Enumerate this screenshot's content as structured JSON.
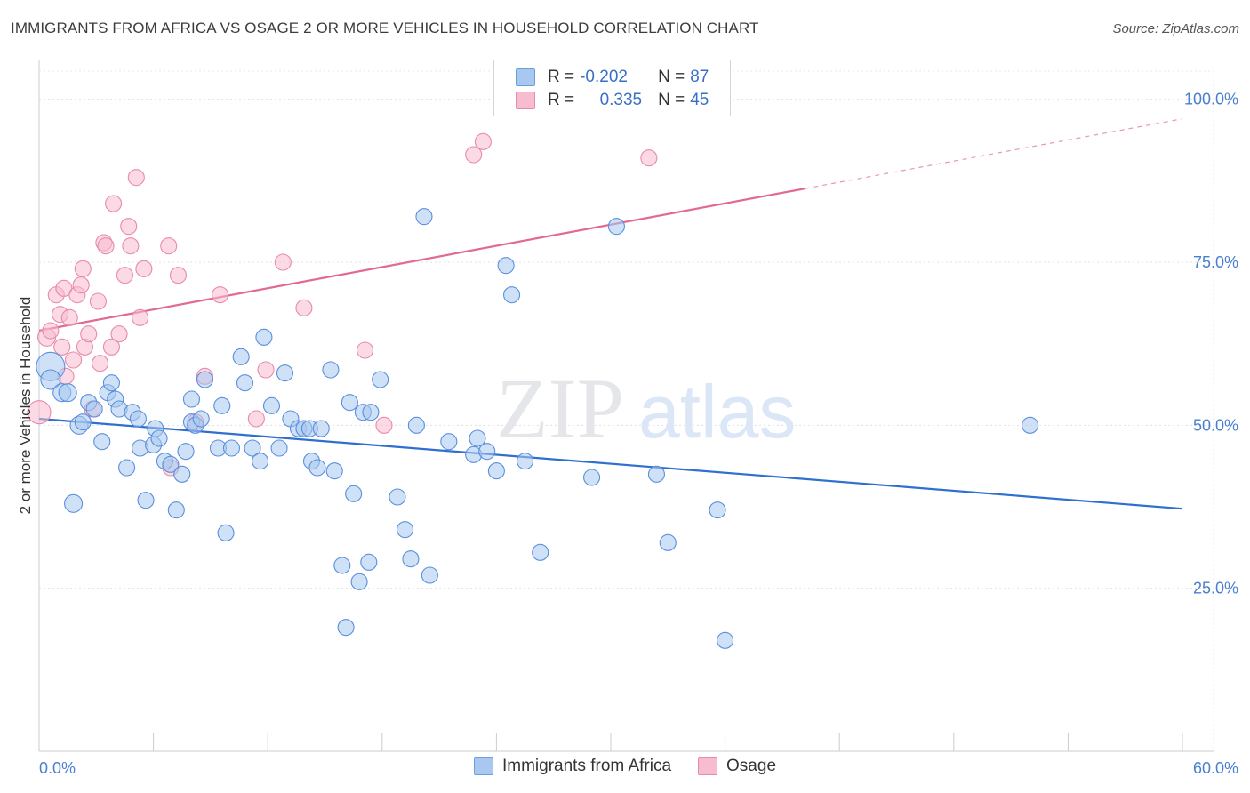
{
  "title": "IMMIGRANTS FROM AFRICA VS OSAGE 2 OR MORE VEHICLES IN HOUSEHOLD CORRELATION CHART",
  "source": "Source: ZipAtlas.com",
  "watermark": {
    "zip": "ZIP",
    "atlas": "atlas"
  },
  "legend": {
    "rows": [
      {
        "r_label": "R =",
        "r_value": "-0.202",
        "n_label": "N =",
        "n_value": "87",
        "color": "#a8c8f0",
        "stroke": "#6a9ee0"
      },
      {
        "r_label": "R =",
        "r_value": "0.335",
        "n_label": "N =",
        "n_value": "45",
        "color": "#f7bcd0",
        "stroke": "#e88aaa"
      }
    ]
  },
  "bottom_legend": [
    {
      "label": "Immigrants from Africa",
      "color": "#a8c8f0",
      "stroke": "#6a9ee0"
    },
    {
      "label": "Osage",
      "color": "#f7bcd0",
      "stroke": "#e88aaa"
    }
  ],
  "chart_data": {
    "type": "scatter",
    "xlabel": "",
    "ylabel": "2 or more Vehicles in Household",
    "xlim": [
      0,
      60
    ],
    "ylim": [
      0,
      105
    ],
    "x_tick_labels": [
      {
        "value": 0,
        "label": "0.0%"
      },
      {
        "value": 60,
        "label": "60.0%"
      }
    ],
    "y_tick_labels": [
      {
        "value": 25,
        "label": "25.0%"
      },
      {
        "value": 50,
        "label": "50.0%"
      },
      {
        "value": 75,
        "label": "75.0%"
      },
      {
        "value": 100,
        "label": "100.0%"
      }
    ],
    "grid": true,
    "series": [
      {
        "name": "Immigrants from Africa",
        "color": "#a8c8f0",
        "stroke": "#5b8fdc",
        "trend": {
          "x": [
            0,
            60
          ],
          "y": [
            51.0,
            37.2
          ],
          "color": "#2e6fd0"
        },
        "points": [
          [
            0.6,
            59.0,
            15
          ],
          [
            0.6,
            57.0,
            10
          ],
          [
            1.2,
            55.0,
            9
          ],
          [
            1.5,
            55.0,
            9
          ],
          [
            2.1,
            50.0,
            9
          ],
          [
            2.3,
            50.5,
            8
          ],
          [
            1.8,
            38.0,
            9
          ],
          [
            2.6,
            53.5,
            8
          ],
          [
            2.9,
            52.5,
            8
          ],
          [
            3.3,
            47.5,
            8
          ],
          [
            3.6,
            55.0,
            8
          ],
          [
            3.8,
            56.5,
            8
          ],
          [
            4.0,
            54.0,
            8
          ],
          [
            4.2,
            52.5,
            8
          ],
          [
            4.6,
            43.5,
            8
          ],
          [
            4.9,
            52.0,
            8
          ],
          [
            5.2,
            51.0,
            8
          ],
          [
            5.3,
            46.5,
            8
          ],
          [
            5.6,
            38.5,
            8
          ],
          [
            6.0,
            47.0,
            8
          ],
          [
            6.1,
            49.5,
            8
          ],
          [
            6.3,
            48.0,
            8
          ],
          [
            6.6,
            44.5,
            8
          ],
          [
            6.9,
            44.0,
            8
          ],
          [
            7.2,
            37.0,
            8
          ],
          [
            7.5,
            42.5,
            8
          ],
          [
            7.7,
            46.0,
            8
          ],
          [
            8.0,
            54.0,
            8
          ],
          [
            8.0,
            50.5,
            8
          ],
          [
            8.2,
            50.0,
            8
          ],
          [
            8.5,
            51.0,
            8
          ],
          [
            8.7,
            57.0,
            8
          ],
          [
            9.4,
            46.5,
            8
          ],
          [
            9.6,
            53.0,
            8
          ],
          [
            9.8,
            33.5,
            8
          ],
          [
            10.1,
            46.5,
            8
          ],
          [
            10.6,
            60.5,
            8
          ],
          [
            10.8,
            56.5,
            8
          ],
          [
            11.2,
            46.5,
            8
          ],
          [
            11.6,
            44.5,
            8
          ],
          [
            11.8,
            63.5,
            8
          ],
          [
            12.2,
            53.0,
            8
          ],
          [
            12.6,
            46.5,
            8
          ],
          [
            12.9,
            58.0,
            8
          ],
          [
            13.2,
            51.0,
            8
          ],
          [
            13.6,
            49.5,
            8
          ],
          [
            13.9,
            49.5,
            8
          ],
          [
            14.2,
            49.5,
            8
          ],
          [
            14.3,
            44.5,
            8
          ],
          [
            14.6,
            43.5,
            8
          ],
          [
            14.8,
            49.5,
            8
          ],
          [
            15.3,
            58.5,
            8
          ],
          [
            15.5,
            43.0,
            8
          ],
          [
            15.9,
            28.5,
            8
          ],
          [
            16.1,
            19.0,
            8
          ],
          [
            16.3,
            53.5,
            8
          ],
          [
            16.5,
            39.5,
            8
          ],
          [
            16.8,
            26.0,
            8
          ],
          [
            17.0,
            52.0,
            8
          ],
          [
            17.3,
            29.0,
            8
          ],
          [
            17.4,
            52.0,
            8
          ],
          [
            17.9,
            57.0,
            8
          ],
          [
            18.8,
            39.0,
            8
          ],
          [
            19.2,
            34.0,
            8
          ],
          [
            19.5,
            29.5,
            8
          ],
          [
            19.8,
            50.0,
            8
          ],
          [
            20.2,
            82.0,
            8
          ],
          [
            20.5,
            27.0,
            8
          ],
          [
            21.5,
            47.5,
            8
          ],
          [
            22.8,
            45.5,
            8
          ],
          [
            23.0,
            48.0,
            8
          ],
          [
            23.5,
            46.0,
            8
          ],
          [
            24.0,
            43.0,
            8
          ],
          [
            24.5,
            74.5,
            8
          ],
          [
            24.8,
            70.0,
            8
          ],
          [
            25.5,
            44.5,
            8
          ],
          [
            26.3,
            30.5,
            8
          ],
          [
            29.0,
            42.0,
            8
          ],
          [
            30.3,
            80.5,
            8
          ],
          [
            32.4,
            42.5,
            8
          ],
          [
            33.0,
            32.0,
            8
          ],
          [
            35.6,
            37.0,
            8
          ],
          [
            36.0,
            17.0,
            8
          ],
          [
            52.0,
            50.0,
            8
          ]
        ]
      },
      {
        "name": "Osage",
        "color": "#f7bcd0",
        "stroke": "#e88aaa",
        "trend": {
          "x": [
            0,
            40.2
          ],
          "y": [
            64.5,
            86.3
          ],
          "dashed_to": {
            "x": 60,
            "y": 97.0
          },
          "color": "#e06a94"
        },
        "points": [
          [
            0.0,
            52.0,
            12
          ],
          [
            0.4,
            63.5,
            9
          ],
          [
            0.6,
            64.5,
            8
          ],
          [
            0.9,
            70.0,
            8
          ],
          [
            1.1,
            67.0,
            8
          ],
          [
            1.2,
            62.0,
            8
          ],
          [
            1.3,
            71.0,
            8
          ],
          [
            1.4,
            57.5,
            8
          ],
          [
            1.6,
            66.5,
            8
          ],
          [
            1.8,
            60.0,
            8
          ],
          [
            2.0,
            70.0,
            8
          ],
          [
            2.2,
            71.5,
            8
          ],
          [
            2.3,
            74.0,
            8
          ],
          [
            2.4,
            62.0,
            8
          ],
          [
            2.6,
            64.0,
            8
          ],
          [
            2.8,
            52.5,
            8
          ],
          [
            3.1,
            69.0,
            8
          ],
          [
            3.2,
            59.5,
            8
          ],
          [
            3.4,
            78.0,
            8
          ],
          [
            3.5,
            77.5,
            8
          ],
          [
            3.8,
            62.0,
            8
          ],
          [
            3.9,
            84.0,
            8
          ],
          [
            4.2,
            64.0,
            8
          ],
          [
            4.5,
            73.0,
            8
          ],
          [
            4.7,
            80.5,
            8
          ],
          [
            4.8,
            77.5,
            8
          ],
          [
            5.1,
            88.0,
            8
          ],
          [
            5.3,
            66.5,
            8
          ],
          [
            5.5,
            74.0,
            8
          ],
          [
            6.8,
            77.5,
            8
          ],
          [
            6.9,
            43.5,
            8
          ],
          [
            7.3,
            73.0,
            8
          ],
          [
            8.2,
            50.5,
            8
          ],
          [
            8.7,
            57.5,
            8
          ],
          [
            9.5,
            70.0,
            8
          ],
          [
            11.4,
            51.0,
            8
          ],
          [
            11.9,
            58.5,
            8
          ],
          [
            12.8,
            75.0,
            8
          ],
          [
            13.9,
            68.0,
            8
          ],
          [
            17.1,
            61.5,
            8
          ],
          [
            18.1,
            50.0,
            8
          ],
          [
            22.8,
            91.5,
            8
          ],
          [
            23.3,
            93.5,
            8
          ],
          [
            32.0,
            91.0,
            8
          ]
        ]
      }
    ]
  }
}
